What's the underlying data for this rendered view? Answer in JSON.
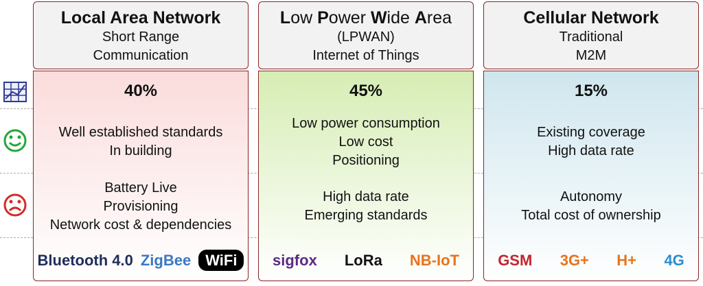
{
  "columns": [
    {
      "title_segments": [
        {
          "text": "Local Area Network",
          "bold": true
        }
      ],
      "subtitle": [
        "Short Range",
        "Communication"
      ],
      "share": "40%",
      "pros": [
        "Well established standards",
        "In building"
      ],
      "cons": [
        "Battery Live",
        "Provisioning",
        "Network cost & dependencies"
      ],
      "background": "#fbdcdc",
      "logos": [
        {
          "text": "Bluetooth 4.0",
          "color": "#1f2d5a"
        },
        {
          "text": "ZigBee",
          "color": "#3b78c2"
        },
        {
          "text": "WiFi",
          "color": "#000000"
        }
      ]
    },
    {
      "title_segments": [
        {
          "text": "L",
          "bold": true
        },
        {
          "text": "ow ",
          "bold": false
        },
        {
          "text": "P",
          "bold": true
        },
        {
          "text": "ower ",
          "bold": false
        },
        {
          "text": "W",
          "bold": true
        },
        {
          "text": "ide ",
          "bold": false
        },
        {
          "text": "A",
          "bold": true
        },
        {
          "text": "rea",
          "bold": false
        }
      ],
      "subtitle": [
        "(LPWAN)",
        "Internet of Things"
      ],
      "share": "45%",
      "pros": [
        "Low power consumption",
        "Low cost",
        "Positioning"
      ],
      "cons": [
        "High data rate",
        "Emerging standards"
      ],
      "background": "#d6edb4",
      "logos": [
        {
          "text": "sigfox",
          "color": "#5b2a86"
        },
        {
          "text": "LoRa",
          "color": "#111111"
        },
        {
          "text": "NB-IoT",
          "color": "#e8731c"
        }
      ]
    },
    {
      "title_segments": [
        {
          "text": "Cellular Network",
          "bold": true
        }
      ],
      "subtitle": [
        "Traditional",
        "M2M"
      ],
      "share": "15%",
      "pros": [
        "Existing coverage",
        "High data rate"
      ],
      "cons": [
        "Autonomy",
        "Total cost of ownership"
      ],
      "background": "#cfe6ee",
      "logos": [
        {
          "text": "GSM",
          "color": "#c0262d"
        },
        {
          "text": "3G+",
          "color": "#e8731c"
        },
        {
          "text": "H+",
          "color": "#e8731c"
        },
        {
          "text": "4G",
          "color": "#2a8ed0"
        }
      ]
    }
  ]
}
